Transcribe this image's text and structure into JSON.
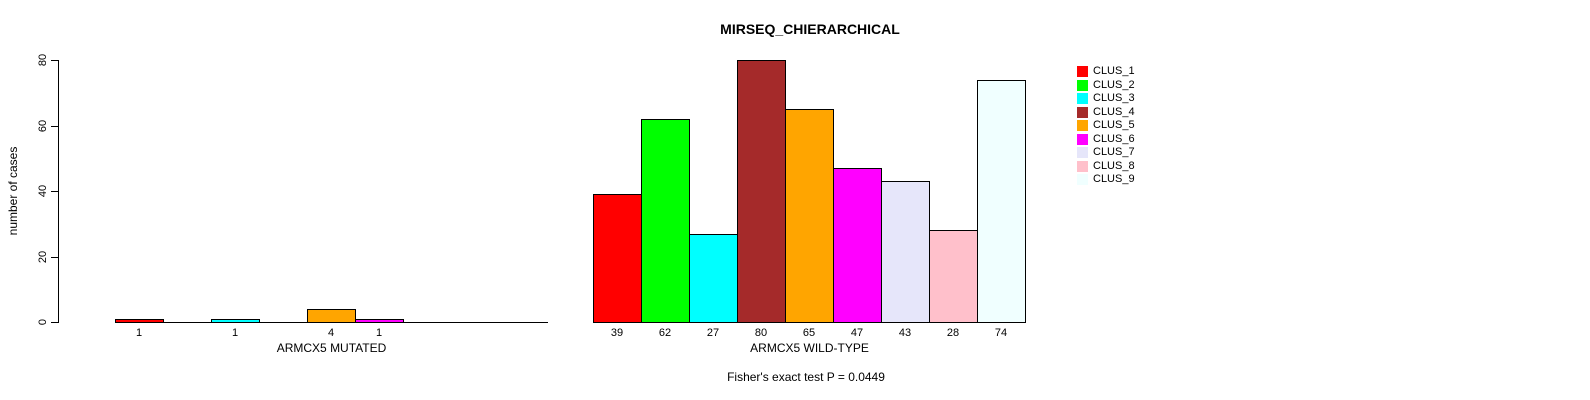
{
  "chart_data": {
    "type": "bar",
    "title": "MIRSEQ_CHIERARCHICAL",
    "ylabel": "number of cases",
    "ylim": [
      0,
      80
    ],
    "yticks": [
      0,
      20,
      40,
      60,
      80
    ],
    "grid": false,
    "legend_position": "right",
    "legend": [
      {
        "label": "CLUS_1",
        "color": "#FF0000"
      },
      {
        "label": "CLUS_2",
        "color": "#00FF00"
      },
      {
        "label": "CLUS_3",
        "color": "#00FFFF"
      },
      {
        "label": "CLUS_4",
        "color": "#A52A2A"
      },
      {
        "label": "CLUS_5",
        "color": "#FFA500"
      },
      {
        "label": "CLUS_6",
        "color": "#FF00FF"
      },
      {
        "label": "CLUS_7",
        "color": "#E6E6FA"
      },
      {
        "label": "CLUS_8",
        "color": "#FFC0CB"
      },
      {
        "label": "CLUS_9",
        "color": "#F0FFFF"
      }
    ],
    "groups": [
      {
        "label": "ARMCX5 MUTATED",
        "values": [
          1,
          0,
          1,
          0,
          4,
          1,
          0,
          0,
          0
        ]
      },
      {
        "label": "ARMCX5 WILD-TYPE",
        "values": [
          39,
          62,
          27,
          80,
          65,
          47,
          43,
          28,
          74
        ]
      }
    ],
    "zero_bars_unlabeled": true,
    "annotation": "Fisher's exact test P = 0.0449"
  }
}
